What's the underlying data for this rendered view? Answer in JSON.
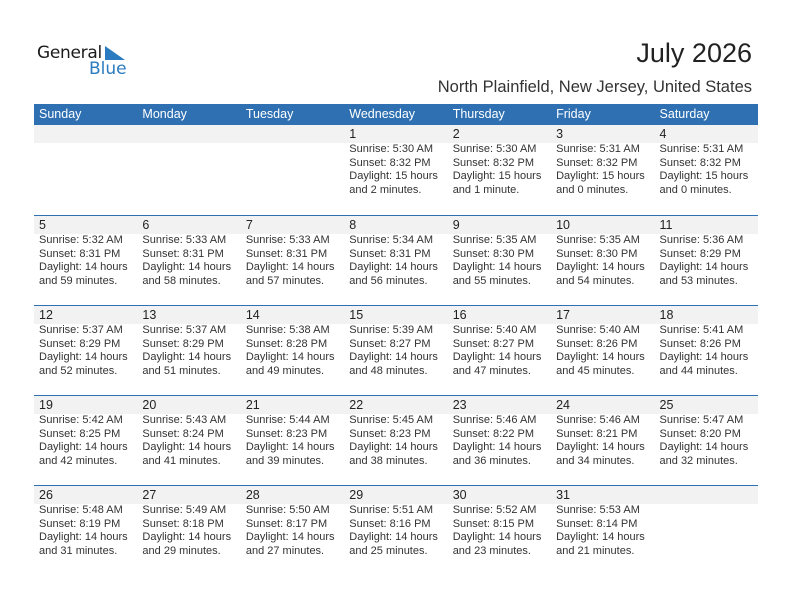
{
  "logo": {
    "word1": "General",
    "word2": "Blue",
    "color": "#2a7bc0"
  },
  "header": {
    "title": "July 2026",
    "location": "North Plainfield, New Jersey, United States"
  },
  "colors": {
    "header_bg": "#2e70b2",
    "date_band": "#f2f2f2"
  },
  "weekdays": [
    "Sunday",
    "Monday",
    "Tuesday",
    "Wednesday",
    "Thursday",
    "Friday",
    "Saturday"
  ],
  "weeks": [
    [
      null,
      null,
      null,
      {
        "day": "1",
        "lines": [
          "Sunrise: 5:30 AM",
          "Sunset: 8:32 PM",
          "Daylight: 15 hours",
          "and 2 minutes."
        ]
      },
      {
        "day": "2",
        "lines": [
          "Sunrise: 5:30 AM",
          "Sunset: 8:32 PM",
          "Daylight: 15 hours",
          "and 1 minute."
        ]
      },
      {
        "day": "3",
        "lines": [
          "Sunrise: 5:31 AM",
          "Sunset: 8:32 PM",
          "Daylight: 15 hours",
          "and 0 minutes."
        ]
      },
      {
        "day": "4",
        "lines": [
          "Sunrise: 5:31 AM",
          "Sunset: 8:32 PM",
          "Daylight: 15 hours",
          "and 0 minutes."
        ]
      }
    ],
    [
      {
        "day": "5",
        "lines": [
          "Sunrise: 5:32 AM",
          "Sunset: 8:31 PM",
          "Daylight: 14 hours",
          "and 59 minutes."
        ]
      },
      {
        "day": "6",
        "lines": [
          "Sunrise: 5:33 AM",
          "Sunset: 8:31 PM",
          "Daylight: 14 hours",
          "and 58 minutes."
        ]
      },
      {
        "day": "7",
        "lines": [
          "Sunrise: 5:33 AM",
          "Sunset: 8:31 PM",
          "Daylight: 14 hours",
          "and 57 minutes."
        ]
      },
      {
        "day": "8",
        "lines": [
          "Sunrise: 5:34 AM",
          "Sunset: 8:31 PM",
          "Daylight: 14 hours",
          "and 56 minutes."
        ]
      },
      {
        "day": "9",
        "lines": [
          "Sunrise: 5:35 AM",
          "Sunset: 8:30 PM",
          "Daylight: 14 hours",
          "and 55 minutes."
        ]
      },
      {
        "day": "10",
        "lines": [
          "Sunrise: 5:35 AM",
          "Sunset: 8:30 PM",
          "Daylight: 14 hours",
          "and 54 minutes."
        ]
      },
      {
        "day": "11",
        "lines": [
          "Sunrise: 5:36 AM",
          "Sunset: 8:29 PM",
          "Daylight: 14 hours",
          "and 53 minutes."
        ]
      }
    ],
    [
      {
        "day": "12",
        "lines": [
          "Sunrise: 5:37 AM",
          "Sunset: 8:29 PM",
          "Daylight: 14 hours",
          "and 52 minutes."
        ]
      },
      {
        "day": "13",
        "lines": [
          "Sunrise: 5:37 AM",
          "Sunset: 8:29 PM",
          "Daylight: 14 hours",
          "and 51 minutes."
        ]
      },
      {
        "day": "14",
        "lines": [
          "Sunrise: 5:38 AM",
          "Sunset: 8:28 PM",
          "Daylight: 14 hours",
          "and 49 minutes."
        ]
      },
      {
        "day": "15",
        "lines": [
          "Sunrise: 5:39 AM",
          "Sunset: 8:27 PM",
          "Daylight: 14 hours",
          "and 48 minutes."
        ]
      },
      {
        "day": "16",
        "lines": [
          "Sunrise: 5:40 AM",
          "Sunset: 8:27 PM",
          "Daylight: 14 hours",
          "and 47 minutes."
        ]
      },
      {
        "day": "17",
        "lines": [
          "Sunrise: 5:40 AM",
          "Sunset: 8:26 PM",
          "Daylight: 14 hours",
          "and 45 minutes."
        ]
      },
      {
        "day": "18",
        "lines": [
          "Sunrise: 5:41 AM",
          "Sunset: 8:26 PM",
          "Daylight: 14 hours",
          "and 44 minutes."
        ]
      }
    ],
    [
      {
        "day": "19",
        "lines": [
          "Sunrise: 5:42 AM",
          "Sunset: 8:25 PM",
          "Daylight: 14 hours",
          "and 42 minutes."
        ]
      },
      {
        "day": "20",
        "lines": [
          "Sunrise: 5:43 AM",
          "Sunset: 8:24 PM",
          "Daylight: 14 hours",
          "and 41 minutes."
        ]
      },
      {
        "day": "21",
        "lines": [
          "Sunrise: 5:44 AM",
          "Sunset: 8:23 PM",
          "Daylight: 14 hours",
          "and 39 minutes."
        ]
      },
      {
        "day": "22",
        "lines": [
          "Sunrise: 5:45 AM",
          "Sunset: 8:23 PM",
          "Daylight: 14 hours",
          "and 38 minutes."
        ]
      },
      {
        "day": "23",
        "lines": [
          "Sunrise: 5:46 AM",
          "Sunset: 8:22 PM",
          "Daylight: 14 hours",
          "and 36 minutes."
        ]
      },
      {
        "day": "24",
        "lines": [
          "Sunrise: 5:46 AM",
          "Sunset: 8:21 PM",
          "Daylight: 14 hours",
          "and 34 minutes."
        ]
      },
      {
        "day": "25",
        "lines": [
          "Sunrise: 5:47 AM",
          "Sunset: 8:20 PM",
          "Daylight: 14 hours",
          "and 32 minutes."
        ]
      }
    ],
    [
      {
        "day": "26",
        "lines": [
          "Sunrise: 5:48 AM",
          "Sunset: 8:19 PM",
          "Daylight: 14 hours",
          "and 31 minutes."
        ]
      },
      {
        "day": "27",
        "lines": [
          "Sunrise: 5:49 AM",
          "Sunset: 8:18 PM",
          "Daylight: 14 hours",
          "and 29 minutes."
        ]
      },
      {
        "day": "28",
        "lines": [
          "Sunrise: 5:50 AM",
          "Sunset: 8:17 PM",
          "Daylight: 14 hours",
          "and 27 minutes."
        ]
      },
      {
        "day": "29",
        "lines": [
          "Sunrise: 5:51 AM",
          "Sunset: 8:16 PM",
          "Daylight: 14 hours",
          "and 25 minutes."
        ]
      },
      {
        "day": "30",
        "lines": [
          "Sunrise: 5:52 AM",
          "Sunset: 8:15 PM",
          "Daylight: 14 hours",
          "and 23 minutes."
        ]
      },
      {
        "day": "31",
        "lines": [
          "Sunrise: 5:53 AM",
          "Sunset: 8:14 PM",
          "Daylight: 14 hours",
          "and 21 minutes."
        ]
      },
      null
    ]
  ]
}
